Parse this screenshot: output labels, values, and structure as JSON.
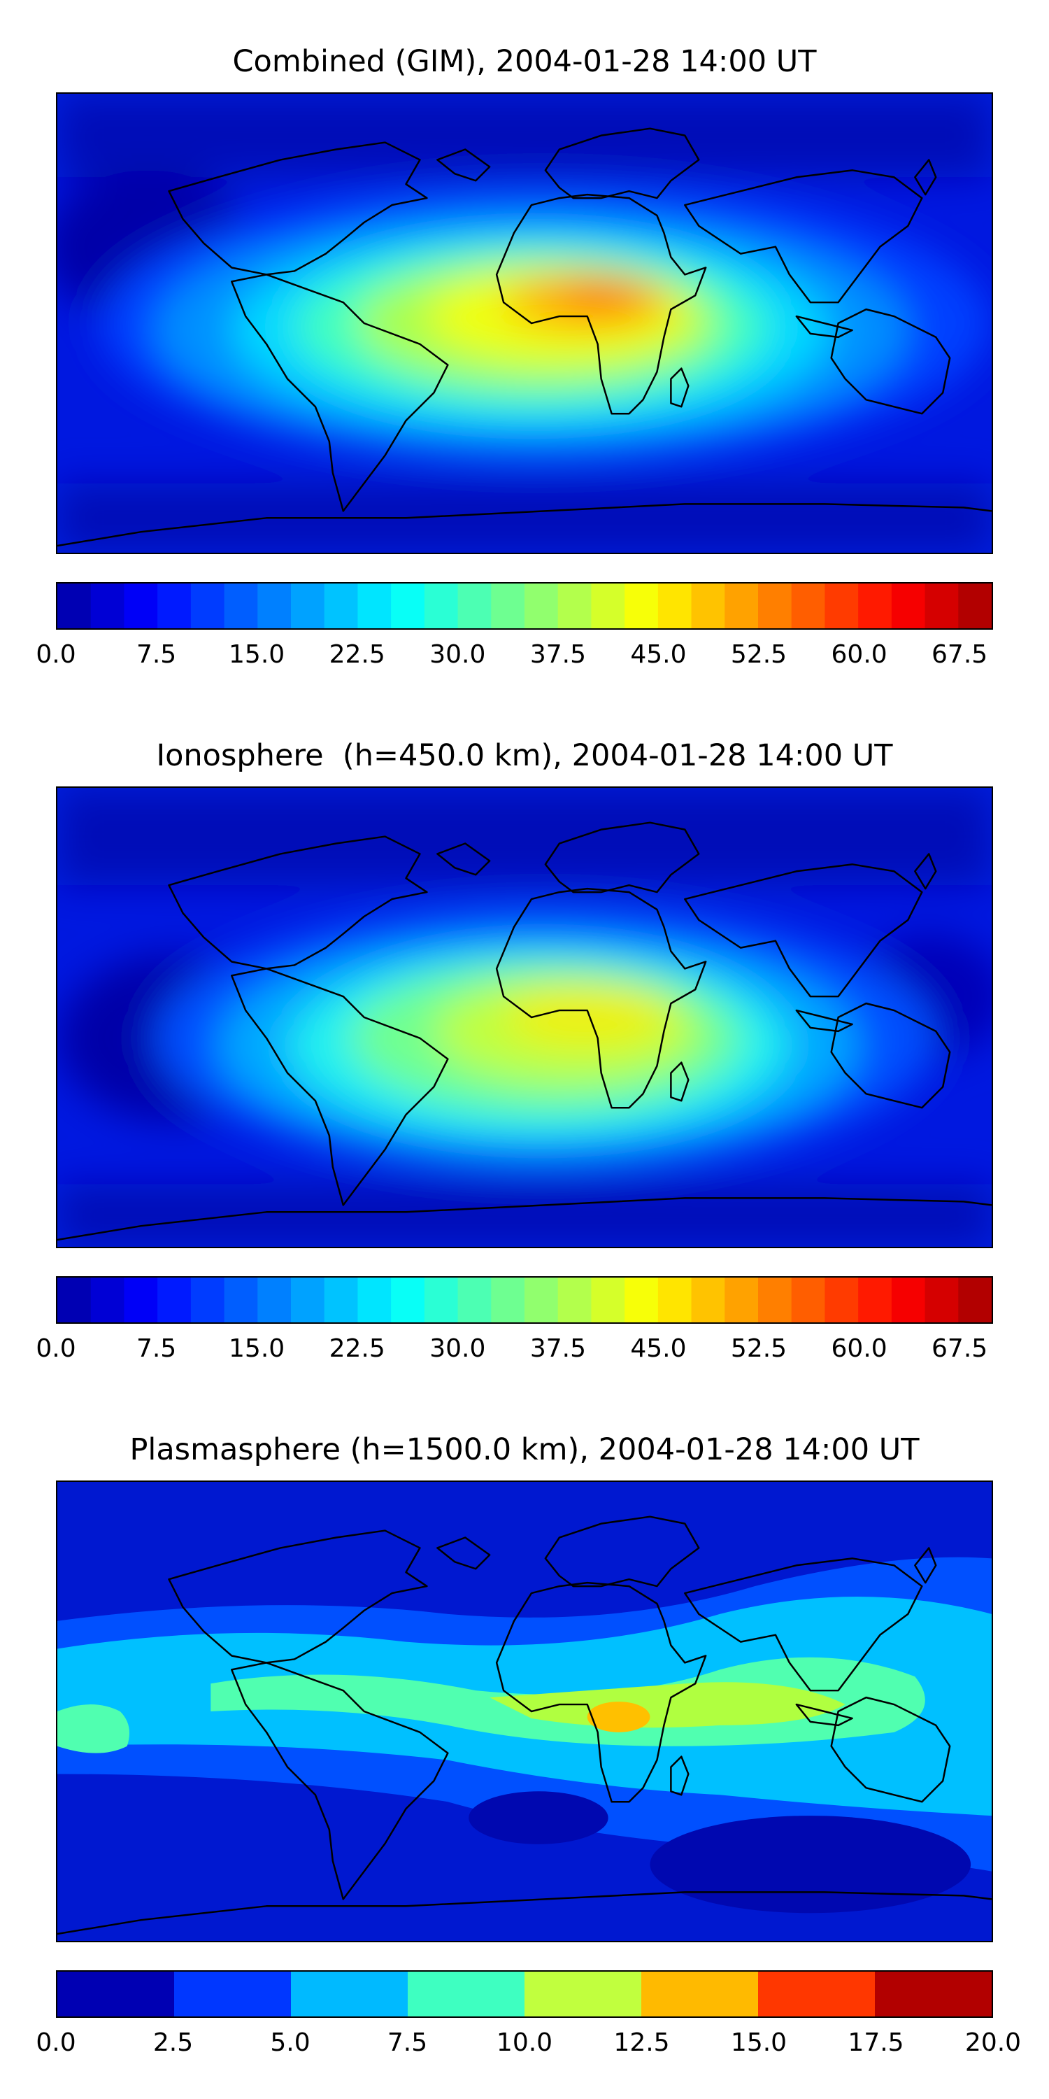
{
  "panels": [
    {
      "title": "Combined (GIM), 2004-01-28 14:00 UT",
      "colorbar": {
        "min": 0,
        "max": 70,
        "levels": 28,
        "tick_labels": [
          "0.0",
          "7.5",
          "15.0",
          "22.5",
          "30.0",
          "37.5",
          "45.0",
          "52.5",
          "60.0",
          "67.5"
        ],
        "tick_values": [
          0,
          7.5,
          15,
          22.5,
          30,
          37.5,
          45,
          52.5,
          60,
          67.5
        ]
      }
    },
    {
      "title": "Ionosphere  (h=450.0 km), 2004-01-28 14:00 UT",
      "colorbar": {
        "min": 0,
        "max": 70,
        "levels": 28,
        "tick_labels": [
          "0.0",
          "7.5",
          "15.0",
          "22.5",
          "30.0",
          "37.5",
          "45.0",
          "52.5",
          "60.0",
          "67.5"
        ],
        "tick_values": [
          0,
          7.5,
          15,
          22.5,
          30,
          37.5,
          45,
          52.5,
          60,
          67.5
        ]
      }
    },
    {
      "title": "Plasmasphere (h=1500.0 km), 2004-01-28 14:00 UT",
      "colorbar": {
        "min": 0,
        "max": 20,
        "levels": 8,
        "tick_labels": [
          "0.0",
          "2.5",
          "5.0",
          "7.5",
          "10.0",
          "12.5",
          "15.0",
          "17.5",
          "20.0"
        ],
        "tick_values": [
          0,
          2.5,
          5,
          7.5,
          10,
          12.5,
          15,
          17.5,
          20
        ]
      }
    }
  ],
  "colormap": "jet",
  "colors": {
    "outline": "#000000",
    "background": "#0000c8"
  }
}
